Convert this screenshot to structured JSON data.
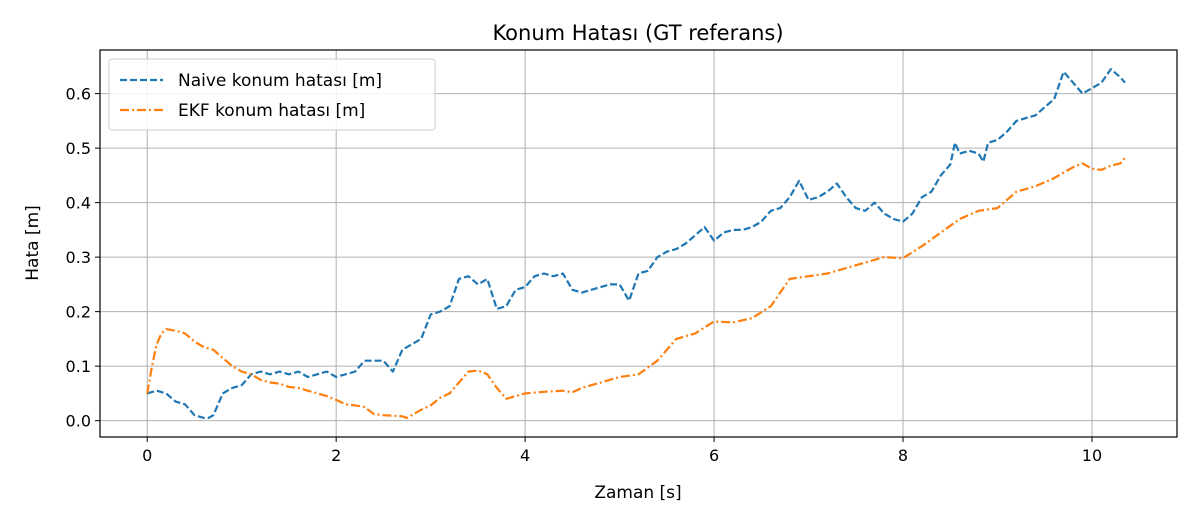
{
  "chart_data": {
    "type": "line",
    "title": "Konum Hatası (GT referans)",
    "xlabel": "Zaman [s]",
    "ylabel": "Hata [m]",
    "xlim": [
      -0.5,
      10.9
    ],
    "ylim": [
      -0.03,
      0.68
    ],
    "xticks": [
      0,
      2,
      4,
      6,
      8,
      10
    ],
    "yticks": [
      0.0,
      0.1,
      0.2,
      0.3,
      0.4,
      0.5,
      0.6
    ],
    "grid": true,
    "legend_position": "top-left",
    "series": [
      {
        "name": "Naive konum hatası [m]",
        "color": "#1f77b4",
        "dash": "dashed",
        "x": [
          0.0,
          0.1,
          0.2,
          0.3,
          0.4,
          0.5,
          0.6,
          0.65,
          0.7,
          0.8,
          0.9,
          1.0,
          1.1,
          1.2,
          1.3,
          1.4,
          1.5,
          1.6,
          1.7,
          1.8,
          1.9,
          2.0,
          2.1,
          2.2,
          2.3,
          2.4,
          2.5,
          2.6,
          2.7,
          2.8,
          2.9,
          3.0,
          3.1,
          3.2,
          3.3,
          3.4,
          3.5,
          3.6,
          3.7,
          3.8,
          3.9,
          4.0,
          4.1,
          4.2,
          4.3,
          4.4,
          4.5,
          4.6,
          4.7,
          4.8,
          4.9,
          5.0,
          5.1,
          5.2,
          5.3,
          5.4,
          5.5,
          5.6,
          5.7,
          5.8,
          5.9,
          6.0,
          6.1,
          6.2,
          6.3,
          6.4,
          6.5,
          6.6,
          6.7,
          6.8,
          6.9,
          7.0,
          7.1,
          7.2,
          7.3,
          7.4,
          7.5,
          7.6,
          7.7,
          7.8,
          7.9,
          8.0,
          8.1,
          8.2,
          8.3,
          8.4,
          8.5,
          8.55,
          8.6,
          8.7,
          8.8,
          8.85,
          8.9,
          9.0,
          9.1,
          9.2,
          9.3,
          9.4,
          9.5,
          9.6,
          9.7,
          9.75,
          9.8,
          9.9,
          10.0,
          10.1,
          10.2,
          10.3,
          10.35
        ],
        "values": [
          0.05,
          0.055,
          0.05,
          0.035,
          0.03,
          0.01,
          0.005,
          0.005,
          0.01,
          0.05,
          0.06,
          0.065,
          0.085,
          0.09,
          0.085,
          0.09,
          0.085,
          0.09,
          0.08,
          0.085,
          0.09,
          0.08,
          0.085,
          0.09,
          0.11,
          0.11,
          0.11,
          0.09,
          0.13,
          0.14,
          0.15,
          0.195,
          0.2,
          0.21,
          0.26,
          0.265,
          0.25,
          0.26,
          0.205,
          0.21,
          0.24,
          0.245,
          0.265,
          0.27,
          0.265,
          0.27,
          0.24,
          0.235,
          0.24,
          0.245,
          0.25,
          0.25,
          0.22,
          0.27,
          0.275,
          0.3,
          0.31,
          0.315,
          0.325,
          0.34,
          0.355,
          0.33,
          0.345,
          0.35,
          0.35,
          0.355,
          0.365,
          0.385,
          0.39,
          0.41,
          0.44,
          0.405,
          0.41,
          0.42,
          0.435,
          0.41,
          0.39,
          0.385,
          0.4,
          0.38,
          0.37,
          0.365,
          0.38,
          0.41,
          0.42,
          0.45,
          0.47,
          0.51,
          0.49,
          0.495,
          0.49,
          0.475,
          0.51,
          0.515,
          0.53,
          0.55,
          0.555,
          0.56,
          0.575,
          0.59,
          0.64,
          0.63,
          0.62,
          0.6,
          0.61,
          0.62,
          0.645,
          0.63,
          0.62
        ]
      },
      {
        "name": "EKF konum hatası [m]",
        "color": "#ff7f0e",
        "dash": "dashdot",
        "x": [
          0.0,
          0.05,
          0.1,
          0.15,
          0.2,
          0.3,
          0.4,
          0.5,
          0.6,
          0.7,
          0.8,
          0.9,
          1.0,
          1.1,
          1.2,
          1.3,
          1.4,
          1.5,
          1.6,
          1.7,
          1.8,
          1.9,
          2.0,
          2.1,
          2.2,
          2.3,
          2.4,
          2.5,
          2.6,
          2.7,
          2.75,
          2.8,
          2.9,
          3.0,
          3.1,
          3.2,
          3.3,
          3.4,
          3.5,
          3.6,
          3.7,
          3.8,
          3.9,
          4.0,
          4.2,
          4.4,
          4.5,
          4.6,
          4.8,
          5.0,
          5.2,
          5.4,
          5.6,
          5.8,
          6.0,
          6.2,
          6.4,
          6.6,
          6.8,
          7.0,
          7.2,
          7.4,
          7.6,
          7.8,
          8.0,
          8.2,
          8.4,
          8.6,
          8.8,
          9.0,
          9.2,
          9.4,
          9.6,
          9.8,
          9.9,
          10.0,
          10.1,
          10.2,
          10.3,
          10.35
        ],
        "values": [
          0.05,
          0.1,
          0.14,
          0.16,
          0.168,
          0.165,
          0.16,
          0.145,
          0.135,
          0.13,
          0.115,
          0.1,
          0.09,
          0.085,
          0.075,
          0.07,
          0.068,
          0.062,
          0.06,
          0.055,
          0.05,
          0.045,
          0.038,
          0.03,
          0.028,
          0.025,
          0.012,
          0.01,
          0.009,
          0.008,
          0.005,
          0.01,
          0.02,
          0.028,
          0.042,
          0.05,
          0.07,
          0.09,
          0.092,
          0.085,
          0.06,
          0.04,
          0.045,
          0.05,
          0.053,
          0.055,
          0.052,
          0.06,
          0.07,
          0.08,
          0.085,
          0.11,
          0.15,
          0.16,
          0.182,
          0.18,
          0.188,
          0.21,
          0.26,
          0.265,
          0.27,
          0.28,
          0.29,
          0.3,
          0.298,
          0.32,
          0.345,
          0.37,
          0.385,
          0.39,
          0.42,
          0.43,
          0.445,
          0.465,
          0.472,
          0.462,
          0.46,
          0.468,
          0.472,
          0.482
        ]
      }
    ]
  }
}
